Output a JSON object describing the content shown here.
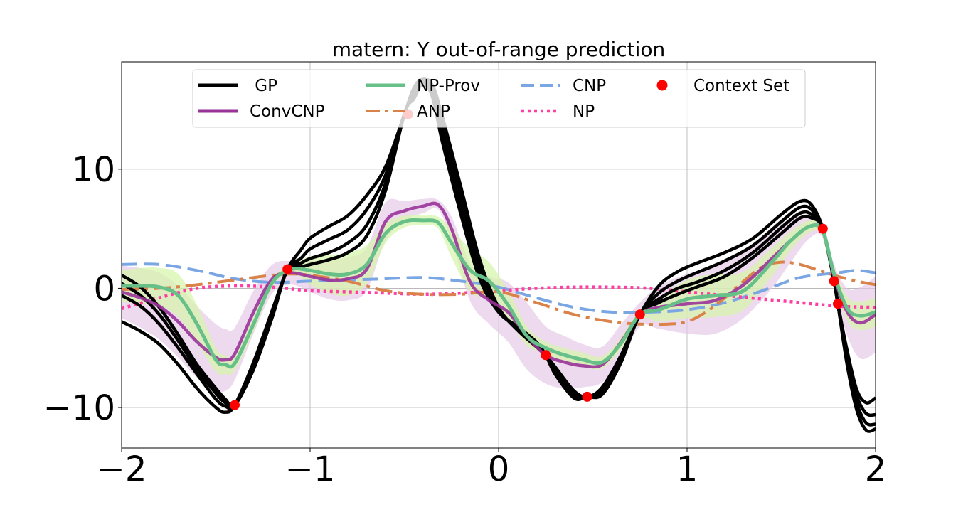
{
  "chart_data": {
    "type": "line",
    "title": "matern: Y out-of-range prediction",
    "xlim": [
      -2,
      2
    ],
    "ylim": [
      -13.4,
      19.0
    ],
    "xticks": [
      -2,
      -1,
      0,
      1,
      2
    ],
    "xtick_labels": [
      "−2",
      "−1",
      "0",
      "1",
      "2"
    ],
    "yticks": [
      10,
      0,
      -10
    ],
    "ytick_labels": [
      "10",
      "0",
      "−10"
    ],
    "grid": true,
    "legend_position": "upper-center",
    "colors": {
      "gp": "#000000",
      "convcnp": "#993399",
      "np_prov": "#66c087",
      "anp": "#d9834a",
      "cnp": "#7aa6e3",
      "np": "#ff3ea5",
      "context": "#ff0000",
      "convcnp_band": "#e3c6e6",
      "np_prov_band": "#d6f5a8"
    },
    "legend": [
      {
        "key": "gp",
        "label": " GP"
      },
      {
        "key": "convcnp",
        "label": "ConvCNP"
      },
      {
        "key": "np_prov",
        "label": "NP-Prov"
      },
      {
        "key": "anp",
        "label": "ANP"
      },
      {
        "key": "cnp",
        "label": "CNP"
      },
      {
        "key": "np",
        "label": "NP"
      },
      {
        "key": "context",
        "label": "Context Set"
      }
    ],
    "context_points": {
      "x": [
        -1.4,
        -1.12,
        -0.48,
        0.25,
        0.47,
        0.75,
        1.72,
        1.78,
        1.8
      ],
      "y": [
        -9.8,
        1.6,
        14.6,
        -5.6,
        -9.1,
        -2.2,
        5.0,
        0.6,
        -1.3
      ]
    },
    "gp": {
      "x": [
        -2,
        -1.9,
        -1.8,
        -1.7,
        -1.6,
        -1.5,
        -1.45,
        -1.4,
        -1.3,
        -1.2,
        -1.12,
        -1.05,
        -1.0,
        -0.9,
        -0.8,
        -0.7,
        -0.6,
        -0.5,
        -0.45,
        -0.4,
        -0.35,
        -0.3,
        -0.2,
        -0.1,
        0.0,
        0.1,
        0.2,
        0.25,
        0.3,
        0.4,
        0.47,
        0.55,
        0.65,
        0.75,
        0.85,
        0.95,
        1.05,
        1.2,
        1.35,
        1.5,
        1.6,
        1.66,
        1.72,
        1.78,
        1.8,
        1.85,
        1.9,
        1.95,
        2.0
      ],
      "samples": [
        [
          -2.8,
          -3.6,
          -4.7,
          -6.4,
          -8.4,
          -10.0,
          -10.4,
          -9.8,
          -6.2,
          -1.8,
          1.6,
          3.2,
          4.2,
          5.2,
          6.1,
          7.8,
          10.2,
          14.6,
          16.8,
          17.6,
          17.0,
          14.5,
          8.5,
          2.4,
          -1.6,
          -3.5,
          -4.9,
          -5.6,
          -6.6,
          -8.6,
          -9.1,
          -8.3,
          -5.6,
          -2.2,
          0.2,
          1.4,
          2.1,
          3.0,
          4.2,
          6.2,
          7.3,
          7.0,
          5.0,
          0.6,
          -1.3,
          -5.3,
          -8.5,
          -9.6,
          -9.2
        ],
        [
          -0.6,
          -1.5,
          -3.0,
          -5.0,
          -7.2,
          -9.3,
          -9.9,
          -9.8,
          -6.4,
          -2.0,
          1.6,
          2.5,
          3.3,
          4.1,
          4.9,
          6.6,
          9.5,
          14.6,
          16.5,
          17.5,
          16.7,
          13.8,
          7.6,
          1.9,
          -1.7,
          -3.4,
          -4.7,
          -5.6,
          -6.8,
          -8.8,
          -9.1,
          -8.5,
          -5.8,
          -2.2,
          -0.4,
          0.6,
          1.3,
          2.3,
          3.6,
          5.6,
          6.8,
          6.6,
          5.0,
          0.6,
          -1.3,
          -5.7,
          -9.0,
          -10.5,
          -10.6
        ],
        [
          0.4,
          -0.6,
          -2.2,
          -4.4,
          -6.8,
          -8.8,
          -9.6,
          -9.8,
          -6.6,
          -2.2,
          1.6,
          2.1,
          2.5,
          3.0,
          3.8,
          5.3,
          8.8,
          14.6,
          16.2,
          17.4,
          16.3,
          13.0,
          6.8,
          1.2,
          -1.9,
          -3.3,
          -4.6,
          -5.6,
          -7.0,
          -9.0,
          -9.1,
          -8.7,
          -6.0,
          -2.2,
          -0.9,
          0.0,
          0.5,
          1.5,
          3.0,
          5.1,
          6.3,
          6.2,
          5.0,
          0.6,
          -1.3,
          -6.1,
          -9.6,
          -11.3,
          -11.4
        ],
        [
          1.1,
          0.1,
          -1.6,
          -3.9,
          -6.4,
          -8.4,
          -9.3,
          -9.8,
          -6.8,
          -2.4,
          1.6,
          1.8,
          2.0,
          2.4,
          3.0,
          4.4,
          8.2,
          14.6,
          15.9,
          17.2,
          16.0,
          12.4,
          6.2,
          0.8,
          -2.0,
          -3.2,
          -4.5,
          -5.6,
          -7.2,
          -9.2,
          -9.1,
          -8.9,
          -6.2,
          -2.2,
          -1.2,
          -0.5,
          0.1,
          1.0,
          2.6,
          4.6,
          5.9,
          5.9,
          5.0,
          0.6,
          -1.3,
          -6.5,
          -10.2,
          -11.9,
          -11.8
        ]
      ]
    },
    "convcnp": {
      "x": [
        -2,
        -1.9,
        -1.8,
        -1.7,
        -1.6,
        -1.5,
        -1.45,
        -1.4,
        -1.3,
        -1.2,
        -1.1,
        -1.0,
        -0.9,
        -0.8,
        -0.7,
        -0.6,
        -0.5,
        -0.4,
        -0.32,
        -0.25,
        -0.15,
        -0.05,
        0.05,
        0.15,
        0.25,
        0.35,
        0.45,
        0.55,
        0.65,
        0.75,
        0.85,
        1.0,
        1.15,
        1.3,
        1.45,
        1.55,
        1.65,
        1.72,
        1.78,
        1.85,
        1.92,
        2.0
      ],
      "mean": [
        -0.3,
        -0.8,
        -1.5,
        -2.8,
        -4.5,
        -5.8,
        -6.0,
        -5.5,
        -2.0,
        0.8,
        1.3,
        1.0,
        0.7,
        0.8,
        1.6,
        5.6,
        6.5,
        6.9,
        7.0,
        5.0,
        0.5,
        -1.0,
        -2.0,
        -4.0,
        -5.6,
        -6.2,
        -6.5,
        -6.4,
        -4.5,
        -2.2,
        -1.6,
        -1.3,
        -1.0,
        0.3,
        2.5,
        4.0,
        5.2,
        4.8,
        1.0,
        -2.0,
        -2.9,
        -2.2
      ],
      "std": [
        2.2,
        2.5,
        2.8,
        3.0,
        3.0,
        2.8,
        2.6,
        2.2,
        1.8,
        1.2,
        1.0,
        1.3,
        1.6,
        1.8,
        1.8,
        1.6,
        0.8,
        0.6,
        0.4,
        1.0,
        1.6,
        2.0,
        2.5,
        2.8,
        2.4,
        2.2,
        1.8,
        1.5,
        1.5,
        1.0,
        1.8,
        2.5,
        2.8,
        2.8,
        2.5,
        1.8,
        1.0,
        0.6,
        1.0,
        2.0,
        3.0,
        3.2
      ]
    },
    "np_prov": {
      "x": [
        -2,
        -1.9,
        -1.8,
        -1.7,
        -1.6,
        -1.5,
        -1.45,
        -1.4,
        -1.3,
        -1.2,
        -1.1,
        -1.0,
        -0.9,
        -0.8,
        -0.7,
        -0.6,
        -0.5,
        -0.4,
        -0.32,
        -0.25,
        -0.15,
        -0.05,
        0.05,
        0.15,
        0.25,
        0.35,
        0.45,
        0.55,
        0.65,
        0.75,
        0.85,
        1.0,
        1.15,
        1.3,
        1.45,
        1.55,
        1.65,
        1.72,
        1.78,
        1.85,
        1.92,
        2.0
      ],
      "mean": [
        0.2,
        0.2,
        0.1,
        -0.6,
        -3.0,
        -6.0,
        -6.4,
        -6.3,
        -3.0,
        0.5,
        1.6,
        1.5,
        1.2,
        1.2,
        2.0,
        4.6,
        5.6,
        5.7,
        5.5,
        3.8,
        1.5,
        0.6,
        -1.4,
        -4.0,
        -5.0,
        -5.6,
        -6.0,
        -6.2,
        -4.6,
        -2.2,
        -1.8,
        -0.9,
        -0.6,
        -0.2,
        2.2,
        4.0,
        5.2,
        4.8,
        1.2,
        -1.7,
        -2.3,
        -2.0
      ],
      "std": [
        1.3,
        1.5,
        1.6,
        1.8,
        1.6,
        1.0,
        0.8,
        0.6,
        0.6,
        0.4,
        0.3,
        1.2,
        1.6,
        1.8,
        1.6,
        0.8,
        0.5,
        0.4,
        0.5,
        1.2,
        1.8,
        1.6,
        1.2,
        0.8,
        0.5,
        0.6,
        0.6,
        0.5,
        0.5,
        0.4,
        1.0,
        1.6,
        1.8,
        1.6,
        1.2,
        0.8,
        0.5,
        0.4,
        0.6,
        1.0,
        1.2,
        1.2
      ]
    },
    "anp": {
      "x": [
        -2,
        -1.8,
        -1.6,
        -1.4,
        -1.2,
        -1.1,
        -1.0,
        -0.8,
        -0.6,
        -0.4,
        -0.2,
        0.0,
        0.2,
        0.4,
        0.6,
        0.75,
        0.9,
        1.0,
        1.1,
        1.2,
        1.3,
        1.4,
        1.5,
        1.6,
        1.7,
        1.8,
        1.9,
        2.0
      ],
      "y": [
        -0.1,
        0.0,
        0.3,
        0.7,
        1.1,
        1.2,
        1.1,
        0.6,
        -0.2,
        -0.5,
        -0.5,
        -0.3,
        -1.2,
        -2.2,
        -2.8,
        -3.0,
        -3.0,
        -2.8,
        -2.0,
        -0.8,
        0.6,
        1.8,
        2.2,
        2.0,
        1.5,
        1.0,
        0.6,
        0.3
      ]
    },
    "cnp": {
      "x": [
        -2,
        -1.8,
        -1.6,
        -1.4,
        -1.2,
        -1.0,
        -0.8,
        -0.6,
        -0.4,
        -0.2,
        0.0,
        0.2,
        0.4,
        0.6,
        0.8,
        1.0,
        1.2,
        1.4,
        1.6,
        1.8,
        1.9,
        2.0
      ],
      "y": [
        2.0,
        2.0,
        1.5,
        0.8,
        0.5,
        0.6,
        0.7,
        0.8,
        0.9,
        0.6,
        0.1,
        -0.8,
        -1.6,
        -2.0,
        -2.0,
        -1.8,
        -1.2,
        -0.2,
        0.9,
        1.3,
        1.5,
        1.3
      ]
    },
    "np": {
      "x": [
        -2,
        -1.8,
        -1.6,
        -1.4,
        -1.2,
        -1.0,
        -0.8,
        -0.6,
        -0.4,
        -0.2,
        0.0,
        0.2,
        0.4,
        0.6,
        0.8,
        1.0,
        1.2,
        1.4,
        1.6,
        1.8,
        2.0
      ],
      "y": [
        -1.7,
        -0.8,
        0.0,
        0.2,
        0.1,
        -0.2,
        -0.3,
        -0.4,
        -0.5,
        -0.4,
        -0.2,
        0.0,
        0.1,
        0.1,
        0.0,
        -0.3,
        -0.6,
        -0.9,
        -1.2,
        -1.5,
        -1.6
      ]
    }
  }
}
